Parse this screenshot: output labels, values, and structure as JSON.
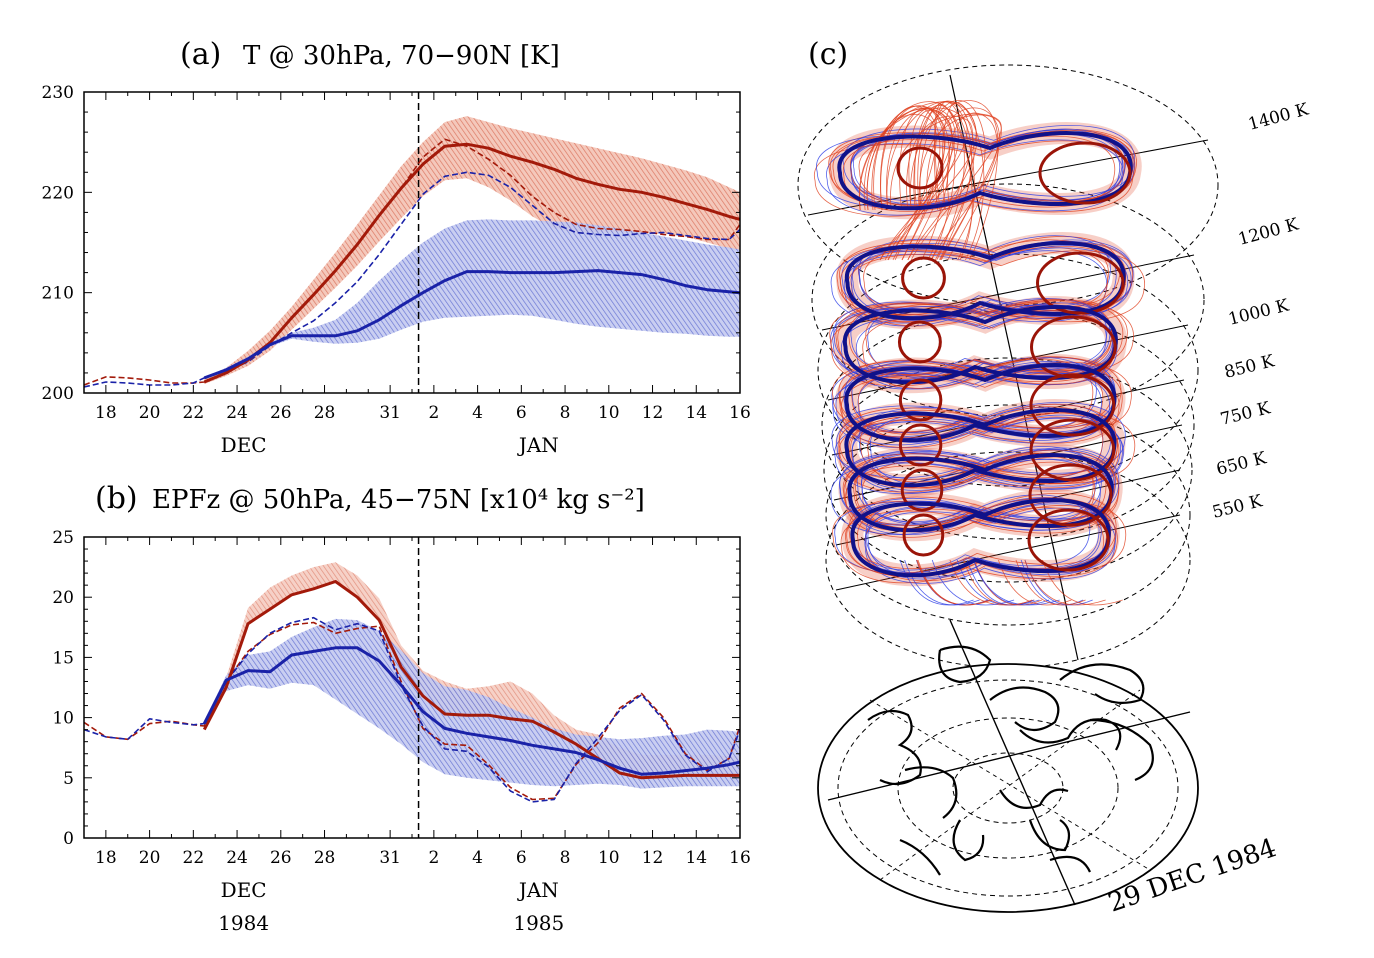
{
  "chart_data": [
    {
      "type": "line",
      "panel_label": "(a)",
      "title": "T @ 30hPa, 70−90N [K]",
      "x_ticks": [
        "18",
        "20",
        "22",
        "24",
        "26",
        "28",
        "31",
        "2",
        "4",
        "6",
        "8",
        "10",
        "12",
        "14",
        "16"
      ],
      "x_tick_days": [
        1,
        3,
        5,
        7,
        9,
        11,
        14,
        16,
        18,
        20,
        22,
        24,
        26,
        28,
        30
      ],
      "month_labels": [
        {
          "text": "DEC",
          "day": 7.3
        },
        {
          "text": "JAN",
          "day": 20.8
        }
      ],
      "year_labels": [],
      "y_ticks": [
        "200",
        "210",
        "220",
        "230"
      ],
      "ylim": [
        200,
        230
      ],
      "xlim": [
        0,
        30
      ],
      "vline_day": 15.3,
      "series": [
        {
          "name": "red mean",
          "color": "#a31a0a",
          "style": "solid",
          "width": 3,
          "x": [
            5.5,
            6.5,
            7.5,
            8.5,
            9.5,
            10.5,
            11.5,
            12.5,
            13.5,
            14.5,
            15.5,
            16.5,
            17.5,
            18.5,
            19.5,
            20.5,
            21.5,
            22.5,
            23.5,
            24.5,
            25.5,
            26.5,
            27.5,
            28.5,
            29.5,
            30
          ],
          "y": [
            201.1,
            202.0,
            203.3,
            205.0,
            207.5,
            209.8,
            212.2,
            214.8,
            217.7,
            220.4,
            222.8,
            224.6,
            224.8,
            224.4,
            223.6,
            223.0,
            222.3,
            221.4,
            220.8,
            220.3,
            220.0,
            219.5,
            218.9,
            218.3,
            217.6,
            217.3
          ]
        },
        {
          "name": "blue mean",
          "color": "#1a22a8",
          "style": "solid",
          "width": 3,
          "x": [
            5.5,
            6.5,
            7.5,
            8.5,
            9.5,
            10.5,
            11.5,
            12.5,
            13.5,
            14.5,
            15.5,
            16.5,
            17.5,
            18.5,
            19.5,
            20.5,
            21.5,
            22.5,
            23.5,
            24.5,
            25.5,
            26.5,
            27.5,
            28.5,
            29.5,
            30
          ],
          "y": [
            201.5,
            202.3,
            203.4,
            204.8,
            205.7,
            205.7,
            205.7,
            206.2,
            207.3,
            208.7,
            210.0,
            211.2,
            212.1,
            212.1,
            212.0,
            212.0,
            212.0,
            212.1,
            212.2,
            212.0,
            211.8,
            211.3,
            210.7,
            210.3,
            210.1,
            210.0
          ]
        },
        {
          "name": "red dashed",
          "color": "#a31a0a",
          "style": "dashed",
          "width": 1.6,
          "x": [
            0,
            1,
            2,
            3,
            4,
            5,
            5.5,
            6.5,
            7.5,
            8.5,
            9.5,
            10.5,
            11.5,
            12.5,
            13.5,
            14.5,
            15.5,
            16.5,
            17.5,
            18.5,
            19.5,
            20.5,
            21.5,
            22.5,
            23.5,
            24.5,
            25.5,
            26.5,
            27.5,
            28.5,
            29.5,
            30
          ],
          "y": [
            200.8,
            201.6,
            201.5,
            201.3,
            201.0,
            201.0,
            201.1,
            202.0,
            203.3,
            205.0,
            207.5,
            209.8,
            212.2,
            214.8,
            217.7,
            220.4,
            223.5,
            225.3,
            224.6,
            223.3,
            221.7,
            219.6,
            218.0,
            216.8,
            216.4,
            216.3,
            216.1,
            215.8,
            215.6,
            215.3,
            215.3,
            216.8
          ]
        },
        {
          "name": "blue dashed",
          "color": "#1a22a8",
          "style": "dashed",
          "width": 1.6,
          "x": [
            0,
            1,
            2,
            3,
            4,
            5,
            5.5,
            6.5,
            7.5,
            8.5,
            9.5,
            10.5,
            11.5,
            12.5,
            13.5,
            14.5,
            15.5,
            16.5,
            17.5,
            18.5,
            19.5,
            20.5,
            21.5,
            22.5,
            23.5,
            24.5,
            25.5,
            26.5,
            27.5,
            28.5,
            29.5,
            30
          ],
          "y": [
            200.6,
            201.1,
            201.0,
            200.8,
            200.8,
            201.0,
            201.5,
            202.2,
            203.1,
            204.7,
            206.0,
            207.2,
            209.0,
            211.1,
            213.8,
            216.8,
            219.8,
            221.6,
            222.0,
            221.7,
            220.5,
            218.7,
            216.9,
            216.0,
            215.8,
            215.7,
            215.9,
            216.0,
            215.7,
            215.4,
            215.3,
            216.3
          ]
        }
      ],
      "bands": [
        {
          "name": "red spread",
          "color": "#e0806a",
          "x": [
            5.5,
            6.5,
            7.5,
            8.5,
            9.5,
            10.5,
            11.5,
            12.5,
            13.5,
            14.5,
            15.5,
            16.5,
            17.5,
            18.5,
            19.5,
            20.5,
            21.5,
            22.5,
            23.5,
            24.5,
            25.5,
            26.5,
            27.5,
            28.5,
            29.5,
            30
          ],
          "upper": [
            201.5,
            202.5,
            204.2,
            206.2,
            208.6,
            211.3,
            214.0,
            216.8,
            219.7,
            222.6,
            225.0,
            227.0,
            227.6,
            227.0,
            226.4,
            225.9,
            225.4,
            224.9,
            224.4,
            223.9,
            223.4,
            222.8,
            222.2,
            221.5,
            220.5,
            220.0
          ],
          "lower": [
            200.9,
            201.7,
            202.7,
            204.2,
            206.3,
            208.4,
            210.5,
            212.7,
            215.1,
            217.4,
            219.6,
            221.2,
            221.4,
            220.5,
            219.2,
            217.6,
            216.4,
            216.0,
            216.0,
            216.0,
            216.0,
            215.9,
            215.6,
            215.0,
            214.4,
            214.2
          ]
        },
        {
          "name": "blue spread",
          "color": "#7080d8",
          "x": [
            5.5,
            6.5,
            7.5,
            8.5,
            9.5,
            10.5,
            11.5,
            12.5,
            13.5,
            14.5,
            15.5,
            16.5,
            17.5,
            18.5,
            19.5,
            20.5,
            21.5,
            22.5,
            23.5,
            24.5,
            25.5,
            26.5,
            27.5,
            28.5,
            29.5,
            30
          ],
          "upper": [
            201.6,
            202.5,
            203.6,
            205.0,
            206.0,
            206.5,
            207.3,
            209.0,
            211.2,
            213.2,
            215.0,
            216.4,
            217.2,
            217.3,
            217.2,
            217.2,
            217.1,
            217.0,
            216.7,
            216.4,
            216.0,
            215.6,
            215.2,
            214.8,
            214.5,
            214.3
          ],
          "lower": [
            201.4,
            202.1,
            203.2,
            204.6,
            205.4,
            205.1,
            204.9,
            205.0,
            205.4,
            206.3,
            207.1,
            207.5,
            207.6,
            207.7,
            207.8,
            207.7,
            207.3,
            206.9,
            206.6,
            206.4,
            206.2,
            206.0,
            205.9,
            205.7,
            205.6,
            205.6
          ]
        }
      ]
    },
    {
      "type": "line",
      "panel_label": "(b)",
      "title": "EPFz @ 50hPa, 45−75N [x10⁴ kg s⁻²]",
      "x_ticks": [
        "18",
        "20",
        "22",
        "24",
        "26",
        "28",
        "31",
        "2",
        "4",
        "6",
        "8",
        "10",
        "12",
        "14",
        "16"
      ],
      "x_tick_days": [
        1,
        3,
        5,
        7,
        9,
        11,
        14,
        16,
        18,
        20,
        22,
        24,
        26,
        28,
        30
      ],
      "month_labels": [
        {
          "text": "DEC",
          "day": 7.3
        },
        {
          "text": "JAN",
          "day": 20.8
        }
      ],
      "year_labels": [
        {
          "text": "1984",
          "day": 7.3
        },
        {
          "text": "1985",
          "day": 20.8
        }
      ],
      "y_ticks": [
        "0",
        "5",
        "10",
        "15",
        "20",
        "25"
      ],
      "ylim": [
        0,
        25
      ],
      "xlim": [
        0,
        30
      ],
      "vline_day": 15.3,
      "series": [
        {
          "name": "red mean",
          "color": "#a31a0a",
          "style": "solid",
          "width": 3,
          "x": [
            5.5,
            6.5,
            7.5,
            8.5,
            9.5,
            10.5,
            11.5,
            12.5,
            13.5,
            14.5,
            15.5,
            16.5,
            17.5,
            18.5,
            19.5,
            20.5,
            21.5,
            22.5,
            23.5,
            24.5,
            25.5,
            26.5,
            27.5,
            28.5,
            29.5,
            30
          ],
          "y": [
            9.0,
            12.5,
            17.8,
            19.0,
            20.2,
            20.7,
            21.3,
            20.0,
            18.1,
            14.2,
            11.8,
            10.3,
            10.2,
            10.2,
            9.9,
            9.7,
            8.8,
            7.8,
            6.6,
            5.4,
            5.0,
            5.1,
            5.2,
            5.2,
            5.2,
            5.2
          ]
        },
        {
          "name": "blue mean",
          "color": "#1a22a8",
          "style": "solid",
          "width": 3,
          "x": [
            5.5,
            6.5,
            7.5,
            8.5,
            9.5,
            10.5,
            11.5,
            12.5,
            13.5,
            14.5,
            15.5,
            16.5,
            17.5,
            18.5,
            19.5,
            20.5,
            21.5,
            22.5,
            23.5,
            24.5,
            25.5,
            26.5,
            27.5,
            28.5,
            29.5,
            30
          ],
          "y": [
            9.5,
            13.1,
            13.9,
            13.8,
            15.2,
            15.5,
            15.8,
            15.8,
            14.7,
            12.7,
            10.5,
            9.1,
            8.7,
            8.4,
            8.1,
            7.7,
            7.4,
            7.1,
            6.5,
            5.8,
            5.3,
            5.4,
            5.6,
            5.8,
            6.1,
            6.3
          ]
        },
        {
          "name": "red dashed",
          "color": "#a31a0a",
          "style": "dashed",
          "width": 1.6,
          "x": [
            0,
            1,
            2,
            3,
            4,
            5,
            5.5,
            6.5,
            7.5,
            8.5,
            9.5,
            10.5,
            11.5,
            12.5,
            13.5,
            14.5,
            15.5,
            16.5,
            17.5,
            18.5,
            19.5,
            20.5,
            21.5,
            22.5,
            23.5,
            24.5,
            25.5,
            26.5,
            27.5,
            28.5,
            29.5,
            30
          ],
          "y": [
            9.6,
            8.4,
            8.2,
            9.5,
            9.7,
            9.4,
            9.3,
            13.0,
            15.5,
            16.9,
            17.7,
            17.9,
            17.0,
            17.4,
            17.6,
            13.0,
            9.1,
            7.8,
            7.7,
            6.1,
            4.2,
            3.2,
            3.3,
            6.1,
            7.9,
            10.8,
            12.0,
            10.0,
            7.0,
            5.6,
            6.6,
            9.3
          ]
        },
        {
          "name": "blue dashed",
          "color": "#1a22a8",
          "style": "dashed",
          "width": 1.6,
          "x": [
            0,
            1,
            2,
            3,
            4,
            5,
            5.5,
            6.5,
            7.5,
            8.5,
            9.5,
            10.5,
            11.5,
            12.5,
            13.5,
            14.5,
            15.5,
            16.5,
            17.5,
            18.5,
            19.5,
            20.5,
            21.5,
            22.5,
            23.5,
            24.5,
            25.5,
            26.5,
            27.5,
            28.5,
            29.5,
            30
          ],
          "y": [
            9.0,
            8.4,
            8.2,
            9.9,
            9.6,
            9.4,
            9.5,
            13.0,
            15.3,
            17.0,
            17.9,
            18.3,
            17.3,
            17.8,
            17.2,
            12.7,
            9.3,
            7.4,
            7.2,
            5.9,
            3.9,
            3.0,
            3.2,
            6.2,
            8.3,
            10.6,
            11.9,
            9.8,
            6.9,
            5.5,
            6.6,
            9.0
          ]
        }
      ],
      "bands": [
        {
          "name": "red spread",
          "color": "#e0806a",
          "x": [
            5.5,
            6.5,
            7.5,
            8.5,
            9.5,
            10.5,
            11.5,
            12.5,
            13.5,
            14.5,
            15.5,
            16.5,
            17.5,
            18.5,
            19.5,
            20.5,
            21.5,
            22.5,
            23.5,
            24.5,
            25.5,
            26.5,
            27.5,
            28.5,
            29.5,
            30
          ],
          "upper": [
            9.2,
            13.3,
            19.1,
            20.8,
            21.8,
            22.5,
            22.9,
            21.8,
            19.9,
            16.0,
            13.9,
            13.0,
            12.4,
            12.6,
            13.0,
            12.0,
            10.2,
            9.0,
            8.6,
            7.5,
            6.9,
            6.9,
            6.9,
            6.9,
            6.8,
            6.8
          ]
        },
        {
          "name": "blue spread",
          "color": "#7080d8",
          "x": [
            5.5,
            6.5,
            7.5,
            8.5,
            9.5,
            10.5,
            11.5,
            12.5,
            13.5,
            14.5,
            15.5,
            16.5,
            17.5,
            18.5,
            19.5,
            20.5,
            21.5,
            22.5,
            23.5,
            24.5,
            25.5,
            26.5,
            27.5,
            28.5,
            29.5,
            30
          ],
          "upper": [
            9.6,
            13.5,
            15.2,
            15.5,
            16.7,
            17.5,
            18.2,
            18.1,
            17.2,
            15.6,
            13.7,
            12.6,
            12.3,
            11.7,
            10.8,
            10.0,
            9.1,
            8.6,
            8.4,
            8.2,
            8.3,
            8.5,
            8.6,
            9.0,
            8.9,
            8.8
          ],
          "lower": [
            9.3,
            12.2,
            12.7,
            12.4,
            12.9,
            12.7,
            11.5,
            10.3,
            9.1,
            7.8,
            6.3,
            5.3,
            5.0,
            4.8,
            4.6,
            4.4,
            4.3,
            4.4,
            4.5,
            4.4,
            4.1,
            4.2,
            4.3,
            4.3,
            4.3,
            4.3
          ]
        }
      ]
    }
  ],
  "panel_c": {
    "label": "(c)",
    "levels": [
      "1400 K",
      "1200 K",
      "1000 K",
      "850 K",
      "750 K",
      "650 K",
      "550 K"
    ],
    "date": "29 DEC 1984",
    "colors": {
      "red": "#e0401e",
      "dark_red": "#9a1408",
      "blue": "#2a3ce6",
      "dark_blue": "#10128a"
    }
  }
}
